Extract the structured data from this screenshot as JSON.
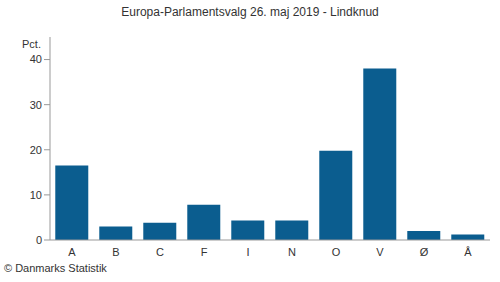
{
  "chart_data": {
    "type": "bar",
    "title": "Europa-Parlamentsvalg 26. maj 2019 - Lindknud",
    "ylabel": "Pct.",
    "annotation": "© Danmarks Statistik",
    "categories": [
      "A",
      "B",
      "C",
      "F",
      "I",
      "N",
      "O",
      "V",
      "Ø",
      "Å"
    ],
    "values": [
      16.5,
      3,
      3.8,
      7.8,
      4.3,
      4.3,
      19.8,
      38,
      2,
      1.2
    ],
    "color": "#0b5d8f",
    "ylim": [
      0,
      45
    ],
    "yticks": [
      0,
      10,
      20,
      30,
      40
    ],
    "grid": false
  }
}
